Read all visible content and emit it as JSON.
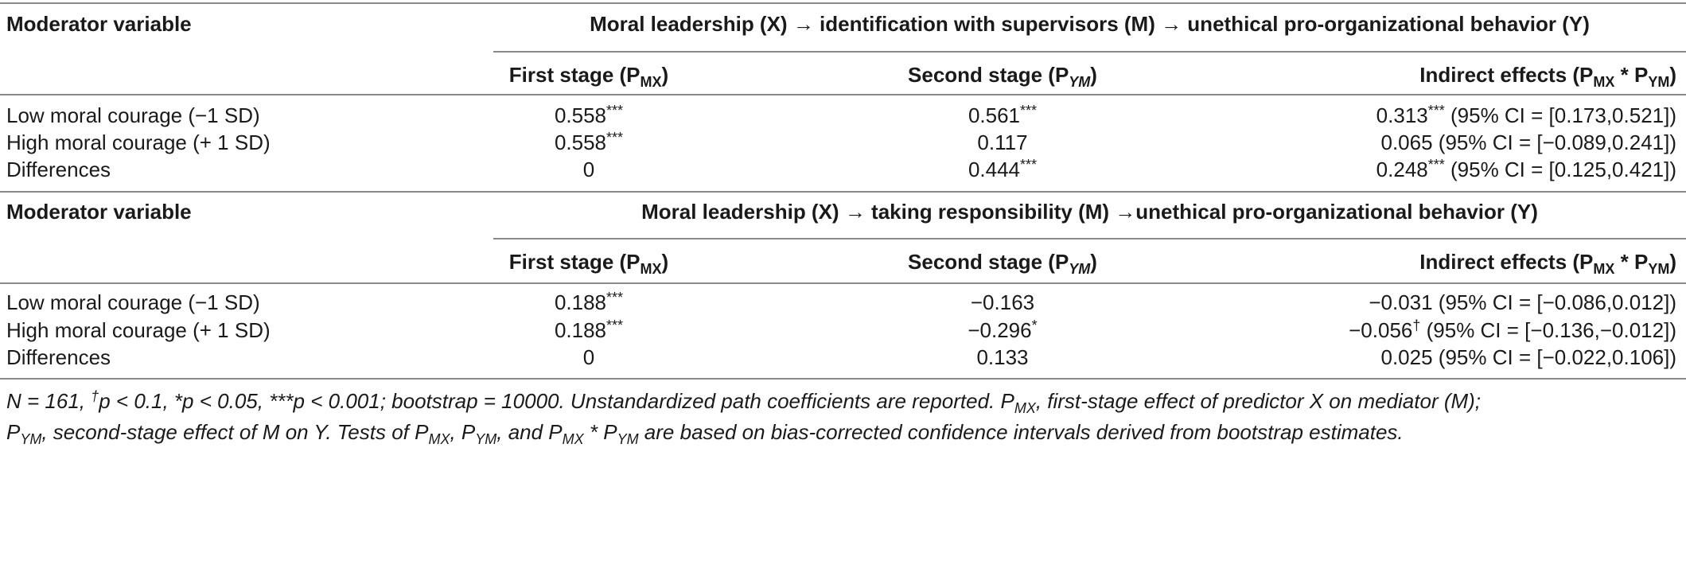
{
  "panels": [
    {
      "moderator_header": "Moderator variable",
      "path_header": "Moral leadership (X) → identification with supervisors (M) → unethical pro-organizational behavior (Y)",
      "col_first": {
        "text": "First stage (P",
        "sub": "MX",
        "end": ")"
      },
      "col_second": {
        "text": "Second stage (P",
        "sub": "YM",
        "end": ")"
      },
      "col_indirect": {
        "text": "Indirect effects (P",
        "sub1": "MX",
        "mid": " * P",
        "sub2": "YM",
        "end": ")"
      },
      "rows": [
        {
          "label": "Low moral courage (−1 SD)",
          "first": "0.558",
          "first_sig": "***",
          "second": "0.561",
          "second_sig": "***",
          "indirect": "0.313",
          "indirect_sig": "***",
          "ci": " (95% CI = [0.173,0.521])"
        },
        {
          "label": "High moral courage (+ 1 SD)",
          "first": "0.558",
          "first_sig": "***",
          "second": "0.117",
          "second_sig": "",
          "indirect": "0.065",
          "indirect_sig": "",
          "ci": " (95% CI = [−0.089,0.241])"
        },
        {
          "label": "Differences",
          "first": "0",
          "first_sig": "",
          "second": "0.444",
          "second_sig": "***",
          "indirect": "0.248",
          "indirect_sig": "***",
          "ci": " (95% CI = [0.125,0.421])"
        }
      ]
    },
    {
      "moderator_header": "Moderator variable",
      "path_header": "Moral leadership (X) → taking responsibility (M) →unethical pro-organizational behavior (Y)",
      "col_first": {
        "text": "First stage (P",
        "sub": "MX",
        "end": ")"
      },
      "col_second": {
        "text": "Second stage (P",
        "sub": "YM",
        "end": ")"
      },
      "col_indirect": {
        "text": "Indirect effects (P",
        "sub1": "MX",
        "mid": " * P",
        "sub2": "YM",
        "end": ")"
      },
      "rows": [
        {
          "label": "Low moral courage (−1 SD)",
          "first": "0.188",
          "first_sig": "***",
          "second": "−0.163",
          "second_sig": "",
          "indirect": "−0.031",
          "indirect_sig": "",
          "ci": " (95% CI = [−0.086,0.012])"
        },
        {
          "label": "High moral courage (+ 1 SD)",
          "first": "0.188",
          "first_sig": "***",
          "second": "−0.296",
          "second_sig": "*",
          "indirect": "−0.056",
          "indirect_sig": "†",
          "ci": " (95% CI = [−0.136,−0.012])"
        },
        {
          "label": "Differences",
          "first": "0",
          "first_sig": "",
          "second": "0.133",
          "second_sig": "",
          "indirect": "0.025",
          "indirect_sig": "",
          "ci": " (95% CI = [−0.022,0.106])"
        }
      ]
    }
  ],
  "note": {
    "line1_parts": {
      "a": "N = 161, ",
      "dagger": "†",
      "b": "p < 0.1, *p < 0.05, ***p < 0.001; bootstrap = 10000. Unstandardized path coefficients are reported. P",
      "sub_mx": "MX",
      "c": ", first-stage effect of predictor X on mediator (M);"
    },
    "line2_parts": {
      "a": "P",
      "sub_ym": "YM",
      "b": ", second-stage effect of M on Y. Tests of P",
      "sub_mx1": "MX",
      "c": ", P",
      "sub_ym1": "YM",
      "d": ", and P",
      "sub_mx2": "MX",
      "e": " * P",
      "sub_ym2": "YM",
      "f": " are based on bias-corrected confidence intervals derived from bootstrap estimates."
    }
  }
}
